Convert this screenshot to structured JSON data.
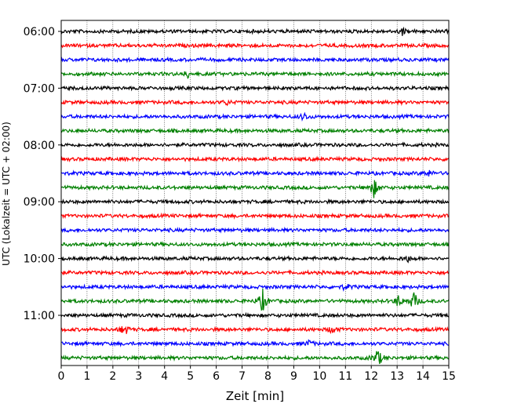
{
  "chart_data": {
    "type": "line",
    "title": "",
    "xlabel": "Zeit  [min]",
    "ylabel": "UTC (Lokalzeit = UTC + 02:00)",
    "xlim": [
      0,
      15
    ],
    "x_ticks": [
      "0",
      "1",
      "2",
      "3",
      "4",
      "5",
      "6",
      "7",
      "8",
      "9",
      "10",
      "11",
      "12",
      "13",
      "14",
      "15"
    ],
    "y_tick_labels": [
      "06:00",
      "07:00",
      "08:00",
      "09:00",
      "10:00",
      "11:00"
    ],
    "trace_start_times": [
      "06:00",
      "06:15",
      "06:30",
      "06:45",
      "07:00",
      "07:15",
      "07:30",
      "07:45",
      "08:00",
      "08:15",
      "08:30",
      "08:45",
      "09:00",
      "09:15",
      "09:30",
      "09:45",
      "10:00",
      "10:15",
      "10:30",
      "10:45",
      "11:00",
      "11:15",
      "11:30",
      "11:45"
    ],
    "trace_colors": [
      "#000000",
      "#ff0000",
      "#0000ff",
      "#008000"
    ],
    "grid_x": true,
    "grid_style": "dotted vertical",
    "events": [
      {
        "trace": "06:00",
        "minute": 13.2,
        "amplitude": 0.35
      },
      {
        "trace": "06:45",
        "minute": 4.9,
        "amplitude": 0.3
      },
      {
        "trace": "07:15",
        "minute": 6.4,
        "amplitude": 0.25
      },
      {
        "trace": "07:30",
        "minute": 9.4,
        "amplitude": 0.4
      },
      {
        "trace": "08:30",
        "minute": 14.2,
        "amplitude": 0.35
      },
      {
        "trace": "08:45",
        "minute": 12.1,
        "amplitude": 1.0
      },
      {
        "trace": "10:00",
        "minute": 13.4,
        "amplitude": 0.35
      },
      {
        "trace": "10:30",
        "minute": 11.0,
        "amplitude": 0.3
      },
      {
        "trace": "10:45",
        "minute": 7.8,
        "amplitude": 1.2
      },
      {
        "trace": "10:45",
        "minute": 13.05,
        "amplitude": 0.6
      },
      {
        "trace": "10:45",
        "minute": 13.65,
        "amplitude": 1.0
      },
      {
        "trace": "11:15",
        "minute": 2.45,
        "amplitude": 0.6
      },
      {
        "trace": "11:15",
        "minute": 10.5,
        "amplitude": 0.4
      },
      {
        "trace": "11:30",
        "minute": 9.6,
        "amplitude": 0.3
      },
      {
        "trace": "11:45",
        "minute": 12.25,
        "amplitude": 1.0
      }
    ]
  }
}
